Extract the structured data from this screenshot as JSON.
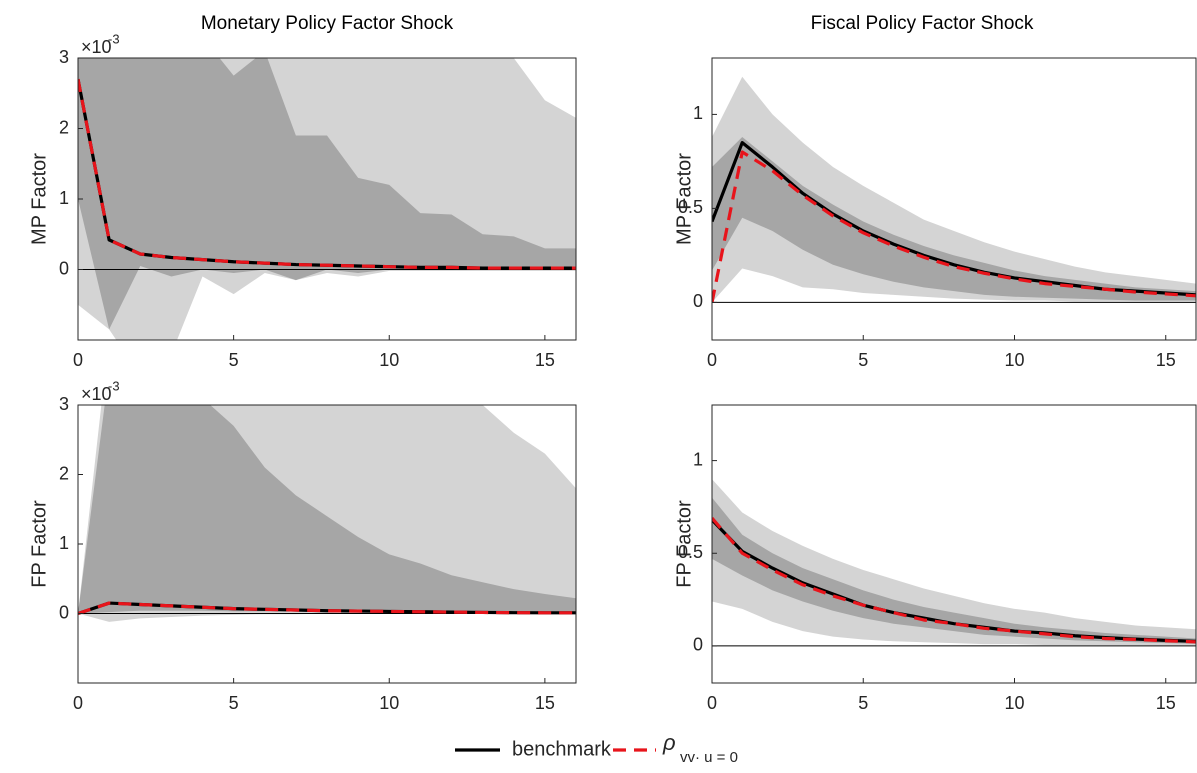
{
  "chart_data": [
    {
      "type": "line",
      "title": "Monetary Policy Factor Shock",
      "ylabel": "MP Factor",
      "y_exponent": {
        "base": "×10",
        "power": "-3"
      },
      "x": [
        0,
        1,
        2,
        3,
        4,
        5,
        6,
        7,
        8,
        9,
        10,
        11,
        12,
        13,
        14,
        15,
        16
      ],
      "xlim": [
        0,
        16
      ],
      "xticks": [
        0,
        5,
        10,
        15
      ],
      "ylim": [
        -1,
        3
      ],
      "yticks": [
        0,
        1,
        2,
        3
      ],
      "hline": 0,
      "bands": [
        {
          "color": "#d4d4d4",
          "upper": [
            3.5,
            4,
            4,
            4,
            4,
            4,
            4,
            4,
            4,
            4,
            4,
            4,
            4,
            3.6,
            3.0,
            2.4,
            2.15
          ],
          "lower": [
            -0.5,
            -0.85,
            -1.5,
            -1.2,
            -0.1,
            -0.35,
            -0.05,
            -0.15,
            -0.05,
            -0.1,
            -0.02,
            -0.02,
            -0.02,
            -0.02,
            -0.02,
            -0.02,
            -0.02
          ]
        },
        {
          "color": "#a6a6a6",
          "upper": [
            3.4,
            4,
            3.5,
            3.6,
            3.3,
            2.75,
            3.1,
            1.9,
            1.9,
            1.3,
            1.2,
            0.8,
            0.78,
            0.5,
            0.47,
            0.3,
            0.3
          ],
          "lower": [
            1.0,
            -0.85,
            0.05,
            -0.1,
            0,
            -0.05,
            0,
            -0.15,
            0,
            -0.05,
            0,
            0,
            0,
            0,
            0,
            0,
            0
          ]
        }
      ],
      "series": [
        {
          "name": "benchmark",
          "color": "#000000",
          "values": [
            2.7,
            0.42,
            0.22,
            0.17,
            0.14,
            0.11,
            0.09,
            0.07,
            0.06,
            0.05,
            0.04,
            0.03,
            0.03,
            0.02,
            0.02,
            0.02,
            0.02
          ]
        },
        {
          "name": "ρ",
          "name_subscript": "vv· u = 0",
          "color": "#e8141b",
          "dashed": true,
          "values": [
            2.7,
            0.42,
            0.22,
            0.17,
            0.14,
            0.11,
            0.09,
            0.07,
            0.06,
            0.05,
            0.04,
            0.03,
            0.03,
            0.02,
            0.02,
            0.02,
            0.02
          ]
        }
      ]
    },
    {
      "type": "line",
      "title": "Fiscal Policy Factor Shock",
      "ylabel": "MP Factor",
      "x": [
        0,
        1,
        2,
        3,
        4,
        5,
        6,
        7,
        8,
        9,
        10,
        11,
        12,
        13,
        14,
        15,
        16
      ],
      "xlim": [
        0,
        16
      ],
      "xticks": [
        0,
        5,
        10,
        15
      ],
      "ylim": [
        -0.2,
        1.3
      ],
      "yticks": [
        0,
        0.5,
        1
      ],
      "hline": 0,
      "bands": [
        {
          "color": "#d4d4d4",
          "upper": [
            0.88,
            1.2,
            1.0,
            0.85,
            0.72,
            0.62,
            0.53,
            0.44,
            0.38,
            0.32,
            0.27,
            0.23,
            0.19,
            0.16,
            0.14,
            0.12,
            0.1
          ],
          "lower": [
            0.0,
            0.18,
            0.14,
            0.08,
            0.07,
            0.05,
            0.04,
            0.03,
            0.02,
            0.015,
            0.01,
            0.01,
            0.005,
            0.005,
            0.005,
            0.005,
            0.005
          ]
        },
        {
          "color": "#a6a6a6",
          "upper": [
            0.72,
            0.88,
            0.75,
            0.62,
            0.52,
            0.43,
            0.36,
            0.3,
            0.25,
            0.21,
            0.17,
            0.14,
            0.12,
            0.1,
            0.08,
            0.07,
            0.06
          ],
          "lower": [
            0.17,
            0.45,
            0.38,
            0.28,
            0.2,
            0.15,
            0.11,
            0.08,
            0.06,
            0.04,
            0.03,
            0.025,
            0.02,
            0.015,
            0.01,
            0.01,
            0.01
          ]
        }
      ],
      "series": [
        {
          "color": "#000000",
          "values": [
            0.43,
            0.85,
            0.72,
            0.58,
            0.47,
            0.38,
            0.31,
            0.25,
            0.2,
            0.16,
            0.13,
            0.11,
            0.09,
            0.07,
            0.06,
            0.05,
            0.04
          ]
        },
        {
          "color": "#e8141b",
          "dashed": true,
          "values": [
            0.0,
            0.8,
            0.7,
            0.57,
            0.46,
            0.37,
            0.3,
            0.24,
            0.19,
            0.155,
            0.125,
            0.1,
            0.085,
            0.07,
            0.055,
            0.045,
            0.035
          ]
        }
      ]
    },
    {
      "type": "line",
      "ylabel": "FP Factor",
      "y_exponent": {
        "base": "×10",
        "power": "-3"
      },
      "x": [
        0,
        1,
        2,
        3,
        4,
        5,
        6,
        7,
        8,
        9,
        10,
        11,
        12,
        13,
        14,
        15,
        16
      ],
      "xlim": [
        0,
        16
      ],
      "xticks": [
        0,
        5,
        10,
        15
      ],
      "ylim": [
        -1,
        3
      ],
      "yticks": [
        0,
        1,
        2,
        3
      ],
      "hline": 0,
      "bands": [
        {
          "color": "#d4d4d4",
          "upper": [
            0,
            4,
            4,
            4,
            4,
            4,
            4,
            4,
            4,
            4,
            4,
            4,
            3.6,
            3.0,
            2.6,
            2.3,
            1.8
          ],
          "lower": [
            0,
            -0.12,
            -0.07,
            -0.05,
            -0.03,
            -0.02,
            -0.01,
            -0.01,
            0,
            0,
            0,
            0,
            0,
            0,
            0,
            0,
            0
          ]
        },
        {
          "color": "#a6a6a6",
          "upper": [
            0,
            3.5,
            3.5,
            3.5,
            3.1,
            2.7,
            2.1,
            1.7,
            1.4,
            1.1,
            0.85,
            0.72,
            0.55,
            0.45,
            0.35,
            0.28,
            0.22
          ],
          "lower": [
            0,
            0.02,
            0.04,
            0.04,
            0.04,
            0.03,
            0.03,
            0.03,
            0.02,
            0.02,
            0.02,
            0.01,
            0.01,
            0.01,
            0.01,
            0.01,
            0
          ]
        }
      ],
      "series": [
        {
          "color": "#000000",
          "values": [
            0,
            0.15,
            0.13,
            0.11,
            0.09,
            0.07,
            0.06,
            0.05,
            0.04,
            0.035,
            0.03,
            0.025,
            0.02,
            0.015,
            0.012,
            0.01,
            0.01
          ]
        },
        {
          "color": "#e8141b",
          "dashed": true,
          "values": [
            0,
            0.15,
            0.13,
            0.11,
            0.09,
            0.07,
            0.06,
            0.05,
            0.04,
            0.035,
            0.03,
            0.025,
            0.02,
            0.015,
            0.012,
            0.01,
            0.01
          ]
        }
      ]
    },
    {
      "type": "line",
      "ylabel": "FP Factor",
      "x": [
        0,
        1,
        2,
        3,
        4,
        5,
        6,
        7,
        8,
        9,
        10,
        11,
        12,
        13,
        14,
        15,
        16
      ],
      "xlim": [
        0,
        16
      ],
      "xticks": [
        0,
        5,
        10,
        15
      ],
      "ylim": [
        -0.2,
        1.3
      ],
      "yticks": [
        0,
        0.5,
        1
      ],
      "hline": 0,
      "bands": [
        {
          "color": "#d4d4d4",
          "upper": [
            0.9,
            0.72,
            0.62,
            0.54,
            0.47,
            0.41,
            0.36,
            0.31,
            0.27,
            0.23,
            0.2,
            0.18,
            0.15,
            0.13,
            0.11,
            0.1,
            0.09
          ],
          "lower": [
            0.24,
            0.2,
            0.13,
            0.08,
            0.05,
            0.035,
            0.025,
            0.02,
            0.015,
            0.01,
            0.01,
            0.005,
            0.005,
            0.005,
            0.005,
            0.005,
            0.005
          ]
        },
        {
          "color": "#a6a6a6",
          "upper": [
            0.8,
            0.6,
            0.5,
            0.42,
            0.36,
            0.3,
            0.25,
            0.21,
            0.18,
            0.15,
            0.12,
            0.1,
            0.085,
            0.07,
            0.06,
            0.05,
            0.04
          ],
          "lower": [
            0.47,
            0.38,
            0.3,
            0.24,
            0.19,
            0.15,
            0.12,
            0.1,
            0.08,
            0.06,
            0.05,
            0.04,
            0.03,
            0.025,
            0.02,
            0.015,
            0.012
          ]
        }
      ],
      "series": [
        {
          "color": "#000000",
          "values": [
            0.68,
            0.51,
            0.42,
            0.34,
            0.28,
            0.22,
            0.18,
            0.15,
            0.12,
            0.1,
            0.08,
            0.07,
            0.055,
            0.045,
            0.037,
            0.03,
            0.025
          ]
        },
        {
          "color": "#e8141b",
          "dashed": true,
          "values": [
            0.69,
            0.5,
            0.41,
            0.33,
            0.27,
            0.22,
            0.18,
            0.14,
            0.12,
            0.095,
            0.08,
            0.065,
            0.05,
            0.04,
            0.035,
            0.028,
            0.022
          ]
        }
      ]
    }
  ]
}
